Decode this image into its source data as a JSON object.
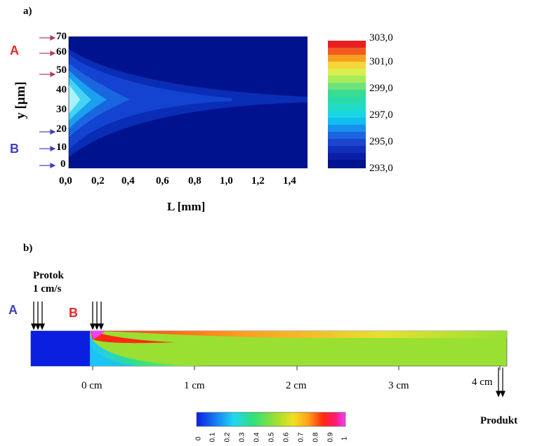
{
  "panel_a": {
    "label": "a)",
    "ylabel": "y [μm]",
    "xlabel": "L [mm]",
    "y_ticks": [
      "70",
      "60",
      "50",
      "40",
      "30",
      "20",
      "10",
      "0"
    ],
    "x_ticks": [
      "0,0",
      "0,2",
      "0,4",
      "0,6",
      "0,8",
      "1,0",
      "1,2",
      "1,4"
    ],
    "marker_a": "A",
    "marker_b": "B",
    "colorbar_ticks": [
      "303,0",
      "301,0",
      "299,0",
      "297,0",
      "295,0",
      "293,0"
    ],
    "colors": {
      "marker_a": "#e8272a",
      "marker_b": "#3f3fbf",
      "arrow": "#b04060"
    }
  },
  "panel_b": {
    "label": "b)",
    "flow_title": "Protok",
    "flow_value": "1 cm/s",
    "marker_a": "A",
    "marker_b": "B",
    "x_ticks": [
      "0 cm",
      "1 cm",
      "2 cm",
      "3 cm",
      "4 cm"
    ],
    "product_label": "Produkt",
    "colorbar_ticks": [
      "0",
      "0.1",
      "0.2",
      "0.3",
      "0.4",
      "0.5",
      "0.6",
      "0.7",
      "0.8",
      "0.9",
      "1"
    ],
    "colors": {
      "marker_a": "#3f3fbf",
      "marker_b": "#e8272a",
      "channel_fill": "#99e033"
    }
  },
  "chart_data": [
    {
      "type": "heatmap",
      "title": "",
      "xlabel": "L [mm]",
      "ylabel": "y [μm]",
      "xlim": [
        0,
        1.5
      ],
      "ylim": [
        0,
        70
      ],
      "x_ticks": [
        0.0,
        0.2,
        0.4,
        0.6,
        0.8,
        1.0,
        1.2,
        1.4
      ],
      "y_ticks": [
        0,
        10,
        20,
        30,
        40,
        50,
        60,
        70
      ],
      "colorbar_range": [
        293.0,
        303.0
      ],
      "colorbar_ticks": [
        303.0,
        301.0,
        299.0,
        297.0,
        295.0,
        293.0
      ]
    },
    {
      "type": "heatmap",
      "title": "",
      "x_ticks_cm": [
        0,
        1,
        2,
        3,
        4
      ],
      "colorbar_range": [
        0,
        1
      ],
      "colorbar_ticks": [
        0,
        0.1,
        0.2,
        0.3,
        0.4,
        0.5,
        0.6,
        0.7,
        0.8,
        0.9,
        1
      ]
    }
  ]
}
